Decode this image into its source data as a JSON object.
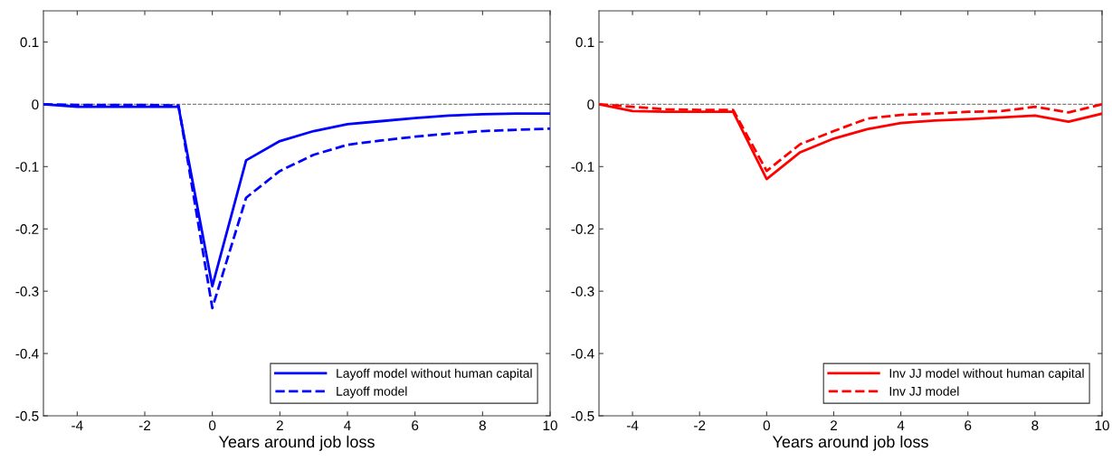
{
  "chart_data": [
    {
      "type": "line",
      "xlabel": "Years around job loss",
      "x": [
        -5,
        -4,
        -3,
        -2,
        -1,
        0,
        1,
        2,
        3,
        4,
        5,
        6,
        7,
        8,
        9,
        10
      ],
      "xlim": [
        -5,
        10
      ],
      "xticks": [
        -4,
        -2,
        0,
        2,
        4,
        6,
        8,
        10
      ],
      "ylim": [
        -0.5,
        0.15
      ],
      "yticks": [
        -0.5,
        -0.4,
        -0.3,
        -0.2,
        -0.1,
        0,
        0.1
      ],
      "grid": false,
      "legend": "bottom right",
      "marker": "none",
      "series": [
        {
          "name": "Layoff model without human capital",
          "color": "#0000ff",
          "line_style": "solid",
          "values": [
            0,
            -0.004,
            -0.004,
            -0.004,
            -0.004,
            -0.292,
            -0.09,
            -0.059,
            -0.043,
            -0.032,
            -0.027,
            -0.022,
            -0.018,
            -0.016,
            -0.015,
            -0.015
          ]
        },
        {
          "name": "Layoff model",
          "color": "#0000ff",
          "line_style": "dashed",
          "values": [
            0,
            -0.001,
            -0.001,
            -0.001,
            -0.002,
            -0.327,
            -0.15,
            -0.107,
            -0.081,
            -0.065,
            -0.058,
            -0.052,
            -0.047,
            -0.043,
            -0.041,
            -0.039
          ]
        }
      ],
      "ref_lines": [
        {
          "axis": "y",
          "value": 0,
          "color": "#808080",
          "line_style": "dashed"
        }
      ]
    },
    {
      "type": "line",
      "xlabel": "Years around job loss",
      "x": [
        -5,
        -4,
        -3,
        -2,
        -1,
        0,
        1,
        2,
        3,
        4,
        5,
        6,
        7,
        8,
        9,
        10
      ],
      "xlim": [
        -5,
        10
      ],
      "xticks": [
        -4,
        -2,
        0,
        2,
        4,
        6,
        8,
        10
      ],
      "ylim": [
        -0.5,
        0.15
      ],
      "yticks": [
        -0.5,
        -0.4,
        -0.3,
        -0.2,
        -0.1,
        0,
        0.1
      ],
      "grid": false,
      "legend": "bottom right",
      "marker": "none",
      "series": [
        {
          "name": "Inv JJ model without human capital",
          "color": "#ff0000",
          "line_style": "solid",
          "values": [
            0,
            -0.011,
            -0.012,
            -0.012,
            -0.012,
            -0.12,
            -0.077,
            -0.055,
            -0.04,
            -0.03,
            -0.026,
            -0.024,
            -0.021,
            -0.018,
            -0.028,
            -0.015
          ]
        },
        {
          "name": "Inv JJ model",
          "color": "#ff0000",
          "line_style": "dashed",
          "values": [
            0,
            -0.004,
            -0.008,
            -0.009,
            -0.009,
            -0.107,
            -0.064,
            -0.043,
            -0.023,
            -0.017,
            -0.015,
            -0.012,
            -0.011,
            -0.004,
            -0.013,
            0
          ]
        }
      ],
      "ref_lines": [
        {
          "axis": "y",
          "value": 0,
          "color": "#808080",
          "line_style": "dashed"
        }
      ]
    }
  ]
}
